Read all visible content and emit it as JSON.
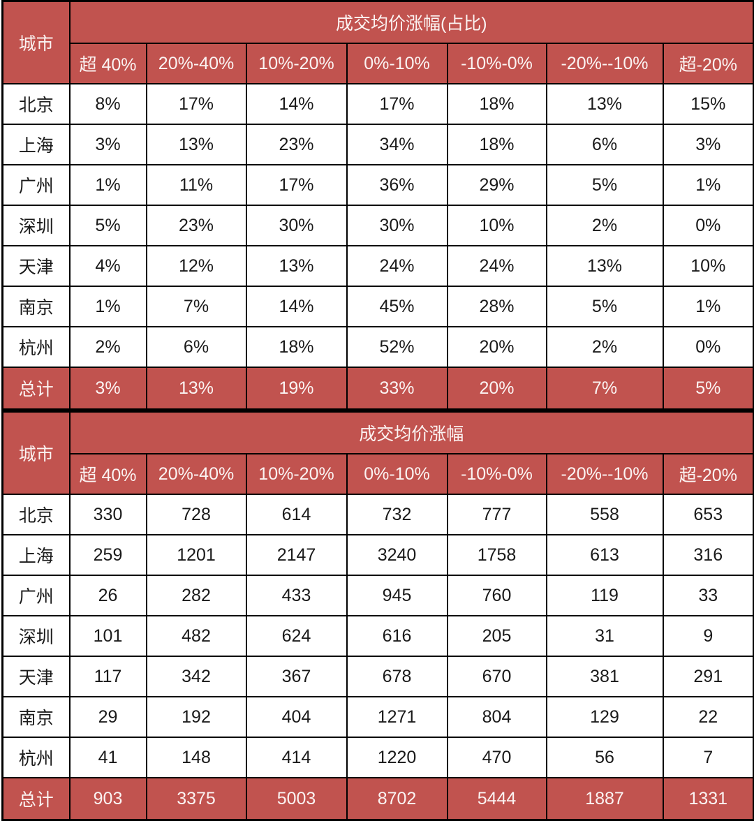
{
  "colors": {
    "accent_red": "#C1534F",
    "border": "#000000",
    "header_text": "#FBF3F2",
    "body_text": "#1A1A1A",
    "background": "#FFFFFF"
  },
  "chart_data": [
    {
      "type": "table",
      "title": "成交均价涨幅(占比)",
      "corner_label": "城市",
      "columns": [
        "超 40%",
        "20%-40%",
        "10%-20%",
        "0%-10%",
        "-10%-0%",
        "-20%--10%",
        "超-20%"
      ],
      "rows": [
        {
          "city": "北京",
          "values": [
            "8%",
            "17%",
            "14%",
            "17%",
            "18%",
            "13%",
            "15%"
          ]
        },
        {
          "city": "上海",
          "values": [
            "3%",
            "13%",
            "23%",
            "34%",
            "18%",
            "6%",
            "3%"
          ]
        },
        {
          "city": "广州",
          "values": [
            "1%",
            "11%",
            "17%",
            "36%",
            "29%",
            "5%",
            "1%"
          ]
        },
        {
          "city": "深圳",
          "values": [
            "5%",
            "23%",
            "30%",
            "30%",
            "10%",
            "2%",
            "0%"
          ]
        },
        {
          "city": "天津",
          "values": [
            "4%",
            "12%",
            "13%",
            "24%",
            "24%",
            "13%",
            "10%"
          ]
        },
        {
          "city": "南京",
          "values": [
            "1%",
            "7%",
            "14%",
            "45%",
            "28%",
            "5%",
            "1%"
          ]
        },
        {
          "city": "杭州",
          "values": [
            "2%",
            "6%",
            "18%",
            "52%",
            "20%",
            "2%",
            "0%"
          ]
        }
      ],
      "total": {
        "city": "总计",
        "values": [
          "3%",
          "13%",
          "19%",
          "33%",
          "20%",
          "7%",
          "5%"
        ]
      }
    },
    {
      "type": "table",
      "title": "成交均价涨幅",
      "corner_label": "城市",
      "columns": [
        "超 40%",
        "20%-40%",
        "10%-20%",
        "0%-10%",
        "-10%-0%",
        "-20%--10%",
        "超-20%"
      ],
      "rows": [
        {
          "city": "北京",
          "values": [
            "330",
            "728",
            "614",
            "732",
            "777",
            "558",
            "653"
          ]
        },
        {
          "city": "上海",
          "values": [
            "259",
            "1201",
            "2147",
            "3240",
            "1758",
            "613",
            "316"
          ]
        },
        {
          "city": "广州",
          "values": [
            "26",
            "282",
            "433",
            "945",
            "760",
            "119",
            "33"
          ]
        },
        {
          "city": "深圳",
          "values": [
            "101",
            "482",
            "624",
            "616",
            "205",
            "31",
            "9"
          ]
        },
        {
          "city": "天津",
          "values": [
            "117",
            "342",
            "367",
            "678",
            "670",
            "381",
            "291"
          ]
        },
        {
          "city": "南京",
          "values": [
            "29",
            "192",
            "404",
            "1271",
            "804",
            "129",
            "22"
          ]
        },
        {
          "city": "杭州",
          "values": [
            "41",
            "148",
            "414",
            "1220",
            "470",
            "56",
            "7"
          ]
        }
      ],
      "total": {
        "city": "总计",
        "values": [
          "903",
          "3375",
          "5003",
          "8702",
          "5444",
          "1887",
          "1331"
        ]
      }
    }
  ]
}
